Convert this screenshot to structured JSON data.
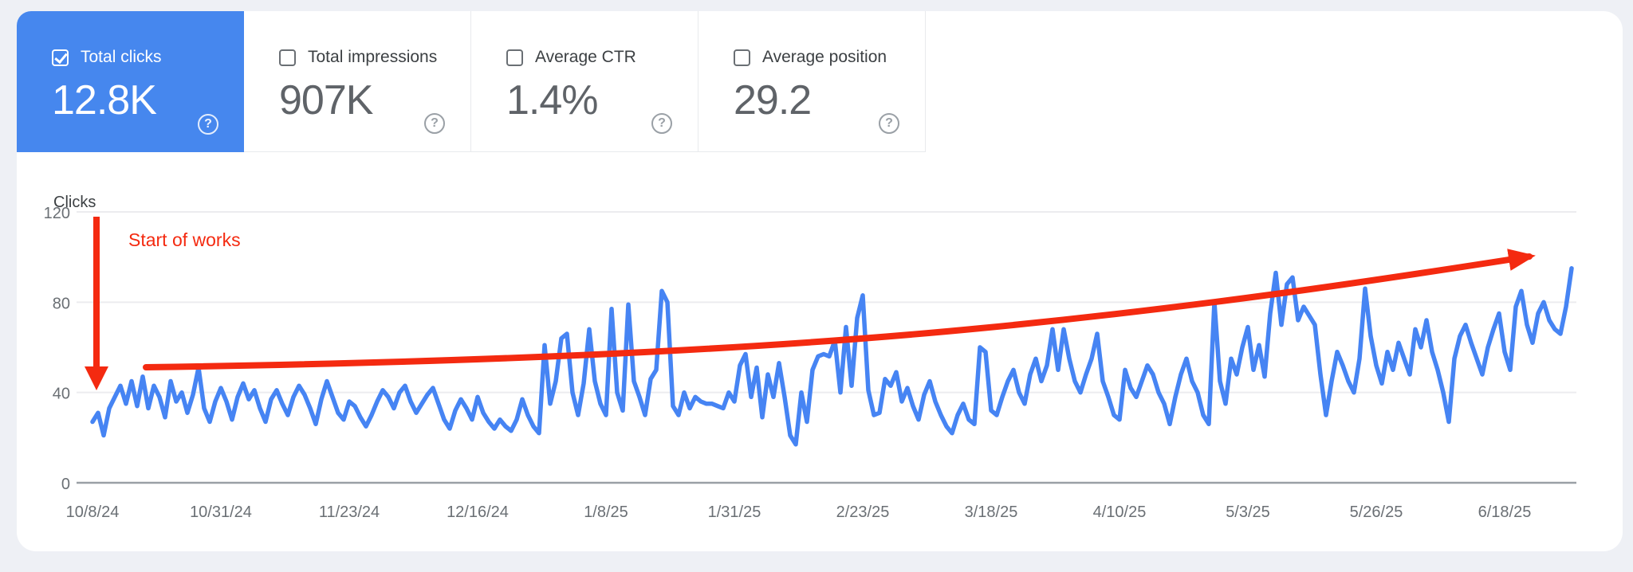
{
  "metrics": {
    "help_glyph": "?",
    "cards": [
      {
        "id": "total-clicks",
        "label": "Total clicks",
        "value": "12.8K",
        "checked": true,
        "selected": true,
        "accent": "#4687ee"
      },
      {
        "id": "total-impressions",
        "label": "Total impressions",
        "value": "907K",
        "checked": false,
        "selected": false
      },
      {
        "id": "average-ctr",
        "label": "Average CTR",
        "value": "1.4%",
        "checked": false,
        "selected": false
      },
      {
        "id": "average-position",
        "label": "Average position",
        "value": "29.2",
        "checked": false,
        "selected": false
      }
    ]
  },
  "chart_data": {
    "type": "line",
    "ylabel": "Clicks",
    "ylim": [
      0,
      120
    ],
    "yticks": [
      0,
      40,
      80,
      120
    ],
    "grid": true,
    "x_tick_labels": [
      "10/8/24",
      "10/31/24",
      "11/23/24",
      "12/16/24",
      "1/8/25",
      "1/31/25",
      "2/23/25",
      "3/18/25",
      "4/10/25",
      "5/3/25",
      "5/26/25",
      "6/18/25"
    ],
    "x_tick_day_indices": [
      0,
      23,
      46,
      69,
      92,
      115,
      138,
      161,
      184,
      207,
      230,
      253
    ],
    "x_start_date": "10/8/24",
    "x_interval": "daily",
    "series": [
      {
        "name": "Clicks",
        "color": "#4684f3",
        "daily_values": [
          27,
          31,
          21,
          33,
          38,
          43,
          35,
          45,
          34,
          47,
          33,
          43,
          38,
          29,
          45,
          36,
          40,
          31,
          39,
          51,
          33,
          27,
          36,
          42,
          36,
          28,
          38,
          44,
          37,
          41,
          33,
          27,
          37,
          41,
          35,
          30,
          38,
          43,
          39,
          33,
          26,
          37,
          45,
          38,
          31,
          28,
          36,
          34,
          29,
          25,
          30,
          36,
          41,
          38,
          33,
          40,
          43,
          36,
          31,
          35,
          39,
          42,
          35,
          28,
          24,
          32,
          37,
          33,
          28,
          38,
          31,
          27,
          24,
          28,
          25,
          23,
          28,
          37,
          30,
          25,
          22,
          61,
          35,
          45,
          64,
          66,
          40,
          30,
          44,
          68,
          45,
          35,
          30,
          77,
          40,
          32,
          79,
          45,
          38,
          30,
          46,
          50,
          85,
          80,
          34,
          30,
          40,
          33,
          38,
          36,
          35,
          35,
          34,
          33,
          40,
          36,
          52,
          57,
          38,
          51,
          29,
          48,
          38,
          53,
          38,
          21,
          17,
          40,
          27,
          50,
          56,
          57,
          56,
          63,
          40,
          69,
          43,
          73,
          83,
          41,
          30,
          31,
          46,
          43,
          49,
          36,
          42,
          34,
          28,
          39,
          45,
          36,
          30,
          25,
          22,
          30,
          35,
          28,
          26,
          60,
          58,
          32,
          30,
          38,
          45,
          50,
          40,
          35,
          48,
          55,
          45,
          52,
          68,
          50,
          68,
          55,
          45,
          40,
          48,
          55,
          66,
          45,
          38,
          30,
          28,
          50,
          42,
          38,
          45,
          52,
          48,
          40,
          35,
          26,
          38,
          48,
          55,
          45,
          40,
          30,
          26,
          80,
          45,
          35,
          55,
          48,
          60,
          69,
          50,
          61,
          47,
          75,
          93,
          70,
          88,
          91,
          72,
          78,
          74,
          70,
          48,
          30,
          45,
          58,
          52,
          45,
          40,
          55,
          86,
          65,
          52,
          44,
          58,
          50,
          62,
          55,
          48,
          68,
          60,
          72,
          58,
          50,
          40,
          27,
          55,
          65,
          70,
          62,
          55,
          48,
          60,
          68,
          75,
          58,
          50,
          78,
          85,
          70,
          62,
          75,
          80,
          72,
          68,
          66,
          78,
          95
        ]
      }
    ],
    "annotations": {
      "color": "#f42a10",
      "note_text": "Start of works",
      "start_marker": "red vertical arrow pointing down at 10/8/24",
      "trend_marker": "red rising trend arrow from ~50 clicks to ~100 clicks"
    }
  }
}
